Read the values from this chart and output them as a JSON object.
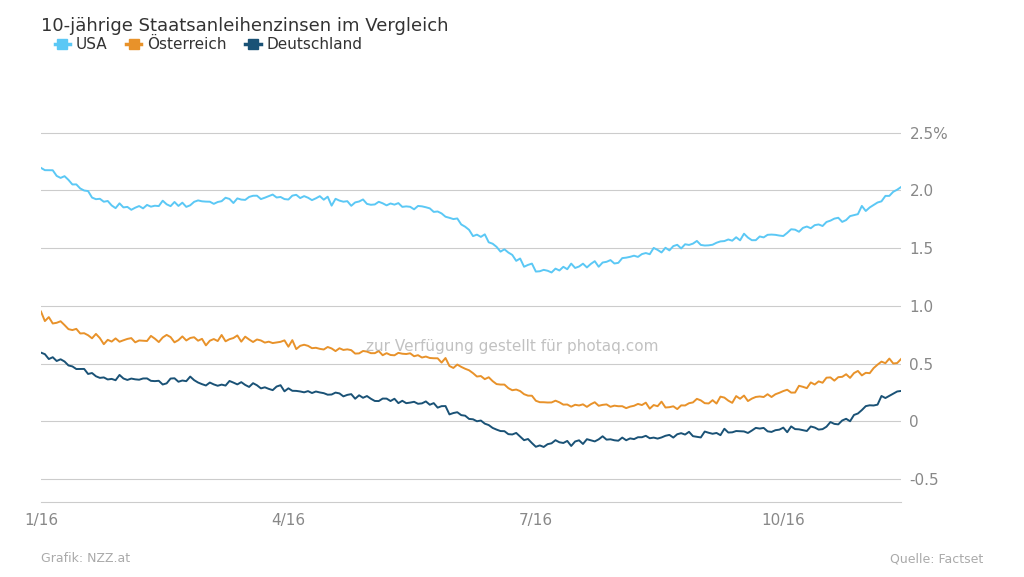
{
  "title": "10-jährige Staatsanleihenzinsen im Vergleich",
  "legend_labels": [
    "USA",
    "Österreich",
    "Deutschland"
  ],
  "colors": {
    "USA": "#5bc8f5",
    "Oesterreich": "#e8922a",
    "Deutschland": "#1a5276"
  },
  "x_ticks": [
    "1/16",
    "4/16",
    "7/16",
    "10/16"
  ],
  "x_tick_positions": [
    0,
    63,
    126,
    189
  ],
  "y_ticks_right": [
    "2.5%",
    "2.0",
    "1.5",
    "1.0",
    "0.5",
    "0",
    "-0.5"
  ],
  "y_tick_vals": [
    2.5,
    2.0,
    1.5,
    1.0,
    0.5,
    0.0,
    -0.5
  ],
  "ylim": [
    -0.7,
    2.7
  ],
  "n_points": 220,
  "background_color": "#ffffff",
  "grid_color": "#cccccc",
  "footer_left": "Grafik: NZZ.at",
  "footer_right": "Quelle: Factset",
  "legend_colors": [
    "#5bc8f5",
    "#e8922a",
    "#1a5276"
  ]
}
